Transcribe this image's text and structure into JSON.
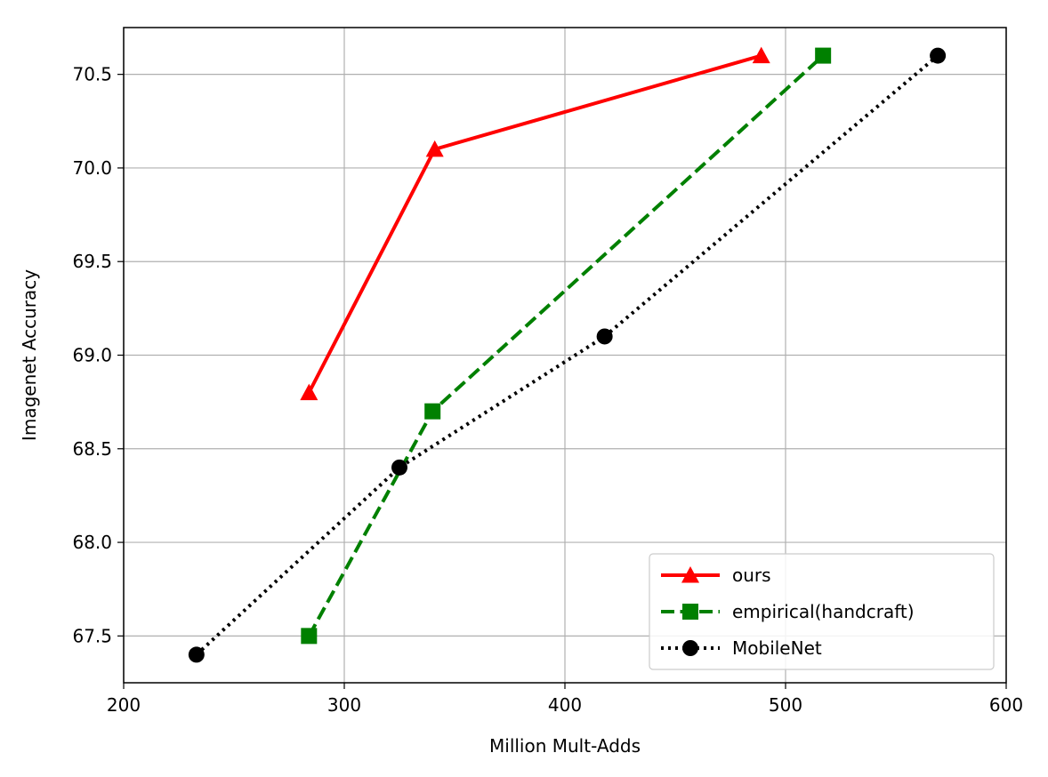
{
  "chart_data": {
    "type": "line",
    "title": "",
    "xlabel": "Million Mult-Adds",
    "ylabel": "Imagenet Accuracy",
    "xlim": [
      200,
      600
    ],
    "ylim": [
      67.25,
      70.75
    ],
    "xticks": [
      200,
      300,
      400,
      500,
      600
    ],
    "yticks": [
      67.5,
      68.0,
      68.5,
      69.0,
      69.5,
      70.0,
      70.5
    ],
    "xtick_labels": [
      "200",
      "300",
      "400",
      "500",
      "600"
    ],
    "ytick_labels": [
      "67.5",
      "68.0",
      "68.5",
      "69.0",
      "69.5",
      "70.0",
      "70.5"
    ],
    "grid": true,
    "legend_position": "lower-right",
    "series": [
      {
        "name": "ours",
        "color": "#ff0000",
        "line_style": "solid",
        "marker": "triangle",
        "x": [
          284,
          341,
          489
        ],
        "y": [
          68.8,
          70.1,
          70.6
        ]
      },
      {
        "name": "empirical(handcraft)",
        "color": "#008000",
        "line_style": "dashed",
        "marker": "square",
        "x": [
          284,
          340,
          517
        ],
        "y": [
          67.5,
          68.7,
          70.6
        ]
      },
      {
        "name": "MobileNet",
        "color": "#000000",
        "line_style": "dotted",
        "marker": "circle",
        "x": [
          233,
          325,
          418,
          569
        ],
        "y": [
          67.4,
          68.4,
          69.1,
          70.6
        ]
      }
    ]
  }
}
